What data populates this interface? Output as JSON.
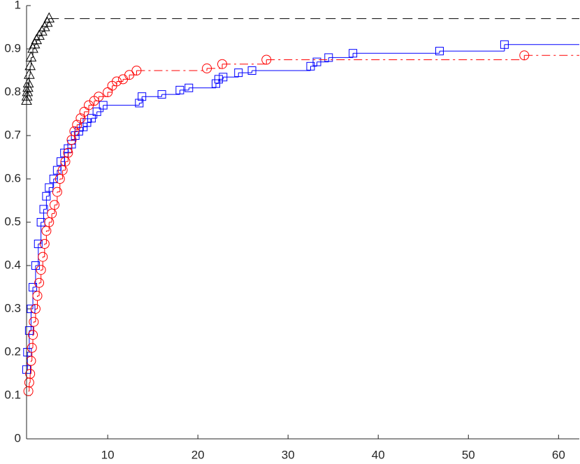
{
  "chart_data": {
    "type": "stairs",
    "xlim": [
      1,
      62.3
    ],
    "ylim": [
      0,
      1
    ],
    "xticks": [
      10,
      20,
      30,
      40,
      50,
      60
    ],
    "yticks": [
      0,
      0.1,
      0.2,
      0.3,
      0.4,
      0.5,
      0.6,
      0.7,
      0.8,
      0.9,
      1
    ],
    "series": [
      {
        "color": "#000000",
        "linestyle": "dashed",
        "marker": "triangle",
        "x": [
          1,
          1.05,
          1.1,
          1.15,
          1.2,
          1.3,
          1.4,
          1.5,
          1.7,
          1.9,
          2.1,
          2.4,
          2.7,
          3.0,
          3.3,
          3.5
        ],
        "values": [
          0.78,
          0.79,
          0.8,
          0.81,
          0.82,
          0.84,
          0.86,
          0.88,
          0.9,
          0.91,
          0.92,
          0.93,
          0.94,
          0.95,
          0.96,
          0.97
        ]
      },
      {
        "color": "#0000ff",
        "linestyle": "solid",
        "marker": "square",
        "x": [
          1,
          1.1,
          1.3,
          1.5,
          1.7,
          2,
          2.3,
          2.6,
          2.9,
          3.2,
          3.5,
          4,
          4.4,
          4.8,
          5.2,
          5.6,
          6,
          6.4,
          6.8,
          7.3,
          7.7,
          8.2,
          8.8,
          9.5,
          13.5,
          13.8,
          16,
          18,
          19,
          22,
          22.3,
          22.8,
          24.5,
          26,
          32.5,
          33.2,
          34.5,
          37.2,
          46.8,
          54
        ],
        "values": [
          0.16,
          0.2,
          0.25,
          0.3,
          0.35,
          0.4,
          0.45,
          0.5,
          0.53,
          0.56,
          0.58,
          0.6,
          0.62,
          0.64,
          0.66,
          0.67,
          0.68,
          0.7,
          0.71,
          0.72,
          0.73,
          0.74,
          0.755,
          0.77,
          0.775,
          0.79,
          0.795,
          0.805,
          0.81,
          0.82,
          0.83,
          0.835,
          0.845,
          0.85,
          0.86,
          0.87,
          0.88,
          0.89,
          0.895,
          0.91
        ]
      },
      {
        "color": "#ff0000",
        "linestyle": "dashdot",
        "marker": "circle",
        "x": [
          1.2,
          1.3,
          1.4,
          1.5,
          1.6,
          1.7,
          1.8,
          2.0,
          2.2,
          2.4,
          2.6,
          2.8,
          3.0,
          3.2,
          3.5,
          3.8,
          4.1,
          4.4,
          4.7,
          5.0,
          5.3,
          5.6,
          6,
          6.3,
          6.6,
          7,
          7.4,
          7.9,
          8.5,
          9,
          10,
          10.5,
          11,
          11.7,
          12.4,
          13.2,
          21,
          22.7,
          27.6,
          56.2
        ],
        "values": [
          0.11,
          0.13,
          0.15,
          0.18,
          0.21,
          0.24,
          0.27,
          0.3,
          0.33,
          0.36,
          0.39,
          0.42,
          0.45,
          0.48,
          0.5,
          0.52,
          0.54,
          0.57,
          0.6,
          0.62,
          0.64,
          0.66,
          0.69,
          0.71,
          0.725,
          0.74,
          0.755,
          0.77,
          0.78,
          0.79,
          0.8,
          0.815,
          0.825,
          0.83,
          0.84,
          0.85,
          0.855,
          0.865,
          0.875,
          0.885
        ]
      }
    ]
  }
}
